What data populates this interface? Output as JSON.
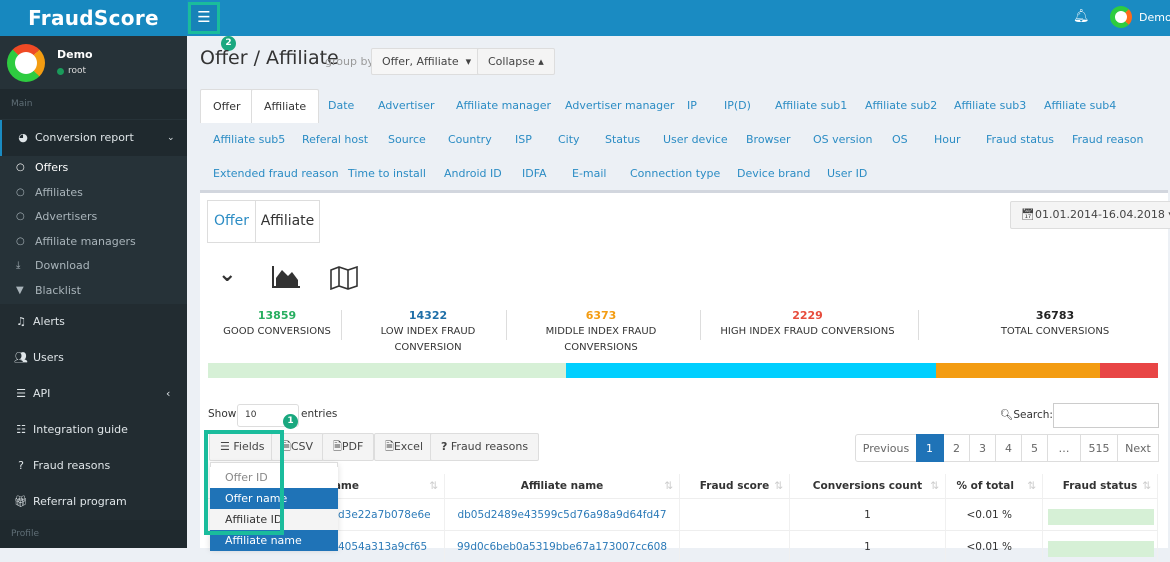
{
  "brand": "FraudScore",
  "header": {
    "user": "Demo",
    "bell_icon": "bell-icon",
    "menu_icon": "hamburger-icon"
  },
  "annotations": {
    "step1": "1",
    "step2": "2",
    "highlight_color": "#1abc9c"
  },
  "sidebar": {
    "user_name": "Demo",
    "user_role": "root",
    "section_main": "Main",
    "section_profile": "Profile",
    "items": [
      {
        "label": "Conversion report",
        "icon": "pie-chart-icon"
      },
      {
        "label": "Alerts",
        "icon": "bell-icon"
      },
      {
        "label": "Users",
        "icon": "users-icon"
      },
      {
        "label": "API",
        "icon": "list-icon"
      },
      {
        "label": "Integration guide",
        "icon": "guide-icon"
      },
      {
        "label": "Fraud reasons",
        "icon": "question-icon"
      },
      {
        "label": "Referral program",
        "icon": "gift-icon"
      }
    ],
    "subitems": [
      {
        "label": "Offers"
      },
      {
        "label": "Affiliates"
      },
      {
        "label": "Advertisers"
      },
      {
        "label": "Affiliate managers"
      },
      {
        "label": "Download",
        "icon": "download-icon"
      },
      {
        "label": "Blacklist",
        "icon": "filter-icon"
      }
    ]
  },
  "page": {
    "title": "Offer / Affiliate",
    "group_by_label": "group by",
    "group_by_value": "Offer, Affiliate",
    "collapse_label": "Collapse"
  },
  "tabs": [
    "Offer",
    "Affiliate",
    "Date",
    "Advertiser",
    "Affiliate manager",
    "Advertiser manager",
    "IP",
    "IP(D)",
    "Affiliate sub1",
    "Affiliate sub2",
    "Affiliate sub3",
    "Affiliate sub4",
    "Affiliate sub5",
    "Referal host",
    "Source",
    "Country",
    "ISP",
    "City",
    "Status",
    "User device",
    "Browser",
    "OS version",
    "OS",
    "Hour",
    "Fraud status",
    "Fraud reason",
    "Extended fraud reason",
    "Time to install",
    "Android ID",
    "IDFA",
    "E-mail",
    "Connection type",
    "Device brand",
    "User ID"
  ],
  "breadcrumb_tabs": [
    "Offer",
    "Affiliate"
  ],
  "date_range": "01.01.2014-16.04.2018",
  "stats": [
    {
      "value": "13859",
      "label": "GOOD CONVERSIONS",
      "color": "#27ae60"
    },
    {
      "value": "14322",
      "label": "LOW INDEX FRAUD CONVERSION",
      "color": "#1f6fa8"
    },
    {
      "value": "6373",
      "label": "MIDDLE INDEX FRAUD CONVERSIONS",
      "color": "#f39c12"
    },
    {
      "value": "2229",
      "label": "HIGH INDEX FRAUD CONVERSIONS",
      "color": "#e74c3c"
    },
    {
      "value": "36783",
      "label": "TOTAL CONVERSIONS",
      "color": "#222222"
    }
  ],
  "bar_colors": [
    "#d6f0d6",
    "#00cfff",
    "#f39c12",
    "#e84545"
  ],
  "table_controls": {
    "show": "Show",
    "entries_value": "10",
    "entries": "entries",
    "search": "Search:",
    "buttons": [
      "Fields",
      "CSV",
      "PDF",
      "Excel",
      "Fraud reasons"
    ]
  },
  "pagination": [
    "Previous",
    "1",
    "2",
    "3",
    "4",
    "5",
    "…",
    "515",
    "Next"
  ],
  "fields_dropdown": [
    "Offer ID",
    "Offer name",
    "Affiliate ID",
    "Affiliate name"
  ],
  "columns": [
    "Offer name",
    "Affiliate name",
    "Fraud score",
    "Conversions count",
    "% of total",
    "Fraud status"
  ],
  "rows": [
    {
      "offer": "d3e22a7b078e6e",
      "affiliate": "db05d2489e43599c5d76a98a9d64fd47",
      "score": "",
      "count": "1",
      "pct": "<0.01 %"
    },
    {
      "offer": "4054a313a9cf65",
      "affiliate": "99d0c6beb0a5319bbe67a173007cc608",
      "score": "",
      "count": "1",
      "pct": "<0.01 %"
    }
  ]
}
